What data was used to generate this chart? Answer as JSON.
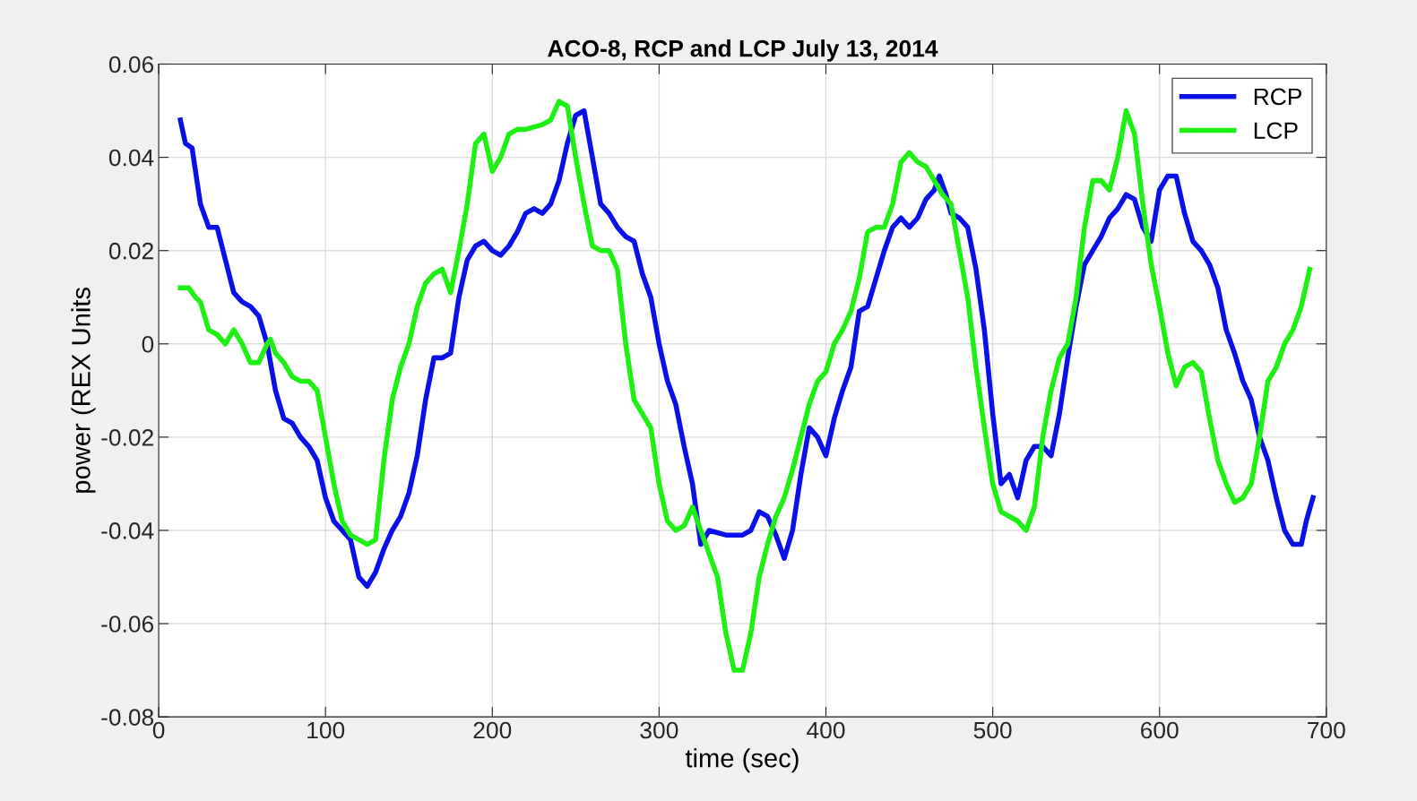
{
  "chart_data": {
    "type": "line",
    "title": "ACO-8, RCP and LCP July 13, 2014",
    "xlabel": "time (sec)",
    "ylabel": "power (REX Units",
    "xlim": [
      0,
      700
    ],
    "xticks": [
      0,
      100,
      200,
      300,
      400,
      500,
      600,
      700
    ],
    "ylim": [
      -0.08,
      0.06
    ],
    "yticks": [
      -0.08,
      -0.06,
      -0.04,
      -0.02,
      0,
      0.02,
      0.04,
      0.06
    ],
    "grid": true,
    "legend": "top right",
    "marker": "none",
    "line_style": "solid",
    "series": [
      {
        "name": "RCP",
        "color": "#0a10e8",
        "x": [
          13,
          16,
          20,
          25,
          30,
          35,
          40,
          45,
          50,
          55,
          60,
          65,
          70,
          75,
          80,
          85,
          90,
          95,
          100,
          105,
          110,
          115,
          120,
          125,
          130,
          135,
          140,
          145,
          150,
          155,
          160,
          165,
          170,
          175,
          180,
          185,
          190,
          195,
          200,
          205,
          210,
          215,
          220,
          225,
          230,
          235,
          240,
          245,
          250,
          255,
          260,
          265,
          270,
          275,
          280,
          285,
          290,
          295,
          300,
          305,
          310,
          315,
          320,
          325,
          330,
          340,
          350,
          355,
          360,
          365,
          370,
          375,
          380,
          385,
          390,
          395,
          400,
          405,
          410,
          415,
          420,
          425,
          430,
          435,
          440,
          445,
          450,
          455,
          460,
          465,
          468,
          472,
          475,
          480,
          485,
          490,
          495,
          500,
          505,
          510,
          515,
          520,
          525,
          530,
          535,
          540,
          545,
          550,
          555,
          560,
          565,
          570,
          575,
          580,
          585,
          590,
          595,
          600,
          605,
          610,
          615,
          620,
          625,
          630,
          635,
          640,
          645,
          650,
          655,
          660,
          665,
          670,
          675,
          680,
          685,
          688,
          692
        ],
        "values": [
          0.048,
          0.043,
          0.042,
          0.03,
          0.025,
          0.025,
          0.018,
          0.011,
          0.009,
          0.008,
          0.006,
          0.0,
          -0.01,
          -0.016,
          -0.017,
          -0.02,
          -0.022,
          -0.025,
          -0.033,
          -0.038,
          -0.04,
          -0.042,
          -0.05,
          -0.052,
          -0.049,
          -0.044,
          -0.04,
          -0.037,
          -0.032,
          -0.024,
          -0.012,
          -0.003,
          -0.003,
          -0.002,
          0.01,
          0.018,
          0.021,
          0.022,
          0.02,
          0.019,
          0.021,
          0.024,
          0.028,
          0.029,
          0.028,
          0.03,
          0.035,
          0.043,
          0.049,
          0.05,
          0.04,
          0.03,
          0.028,
          0.025,
          0.023,
          0.022,
          0.015,
          0.01,
          0.0,
          -0.008,
          -0.013,
          -0.022,
          -0.03,
          -0.043,
          -0.04,
          -0.041,
          -0.041,
          -0.04,
          -0.036,
          -0.037,
          -0.041,
          -0.046,
          -0.04,
          -0.028,
          -0.018,
          -0.02,
          -0.024,
          -0.016,
          -0.01,
          -0.005,
          0.007,
          0.008,
          0.014,
          0.02,
          0.025,
          0.027,
          0.025,
          0.027,
          0.031,
          0.033,
          0.036,
          0.032,
          0.028,
          0.027,
          0.025,
          0.016,
          0.003,
          -0.015,
          -0.03,
          -0.028,
          -0.033,
          -0.025,
          -0.022,
          -0.022,
          -0.024,
          -0.015,
          -0.003,
          0.008,
          0.017,
          0.02,
          0.023,
          0.027,
          0.029,
          0.032,
          0.031,
          0.025,
          0.022,
          0.033,
          0.036,
          0.036,
          0.028,
          0.022,
          0.02,
          0.017,
          0.012,
          0.003,
          -0.002,
          -0.008,
          -0.012,
          -0.02,
          -0.025,
          -0.033,
          -0.04,
          -0.043,
          -0.043,
          -0.038,
          -0.033
        ]
      },
      {
        "name": "LCP",
        "color": "#1ef014",
        "x": [
          13,
          18,
          22,
          25,
          30,
          35,
          40,
          45,
          50,
          55,
          60,
          65,
          67,
          70,
          75,
          80,
          85,
          90,
          95,
          100,
          105,
          110,
          115,
          120,
          125,
          130,
          135,
          140,
          145,
          150,
          155,
          160,
          165,
          170,
          175,
          180,
          185,
          190,
          195,
          200,
          205,
          210,
          215,
          220,
          230,
          235,
          240,
          245,
          250,
          255,
          260,
          265,
          270,
          275,
          280,
          285,
          290,
          295,
          300,
          305,
          310,
          315,
          320,
          325,
          330,
          335,
          340,
          345,
          350,
          355,
          360,
          365,
          370,
          375,
          380,
          385,
          390,
          395,
          400,
          405,
          410,
          415,
          420,
          425,
          430,
          435,
          440,
          445,
          450,
          455,
          460,
          465,
          470,
          475,
          480,
          485,
          490,
          495,
          500,
          505,
          510,
          515,
          520,
          525,
          530,
          535,
          540,
          545,
          550,
          555,
          560,
          565,
          570,
          575,
          580,
          585,
          590,
          595,
          600,
          605,
          610,
          615,
          620,
          625,
          630,
          635,
          640,
          645,
          650,
          655,
          660,
          665,
          670,
          675,
          680,
          685,
          690
        ],
        "values": [
          0.012,
          0.012,
          0.01,
          0.009,
          0.003,
          0.002,
          0.0,
          0.003,
          0.0,
          -0.004,
          -0.004,
          0.0,
          0.001,
          -0.002,
          -0.004,
          -0.007,
          -0.008,
          -0.008,
          -0.01,
          -0.02,
          -0.03,
          -0.038,
          -0.041,
          -0.042,
          -0.043,
          -0.042,
          -0.025,
          -0.012,
          -0.005,
          0.0,
          0.008,
          0.013,
          0.015,
          0.016,
          0.011,
          0.02,
          0.03,
          0.043,
          0.045,
          0.037,
          0.04,
          0.045,
          0.046,
          0.046,
          0.047,
          0.048,
          0.052,
          0.051,
          0.04,
          0.03,
          0.021,
          0.02,
          0.02,
          0.016,
          0.0,
          -0.012,
          -0.015,
          -0.018,
          -0.03,
          -0.038,
          -0.04,
          -0.039,
          -0.035,
          -0.04,
          -0.045,
          -0.05,
          -0.062,
          -0.07,
          -0.07,
          -0.062,
          -0.05,
          -0.043,
          -0.037,
          -0.033,
          -0.027,
          -0.02,
          -0.013,
          -0.008,
          -0.006,
          0.0,
          0.003,
          0.007,
          0.014,
          0.024,
          0.025,
          0.025,
          0.03,
          0.039,
          0.041,
          0.039,
          0.038,
          0.035,
          0.032,
          0.03,
          0.02,
          0.01,
          -0.005,
          -0.018,
          -0.03,
          -0.036,
          -0.037,
          -0.038,
          -0.04,
          -0.035,
          -0.02,
          -0.01,
          -0.003,
          0.0,
          0.01,
          0.025,
          0.035,
          0.035,
          0.033,
          0.04,
          0.05,
          0.045,
          0.03,
          0.017,
          0.008,
          -0.002,
          -0.009,
          -0.005,
          -0.004,
          -0.006,
          -0.016,
          -0.025,
          -0.03,
          -0.034,
          -0.033,
          -0.03,
          -0.02,
          -0.008,
          -0.005,
          0.0,
          0.003,
          0.008,
          0.016
        ]
      }
    ]
  }
}
